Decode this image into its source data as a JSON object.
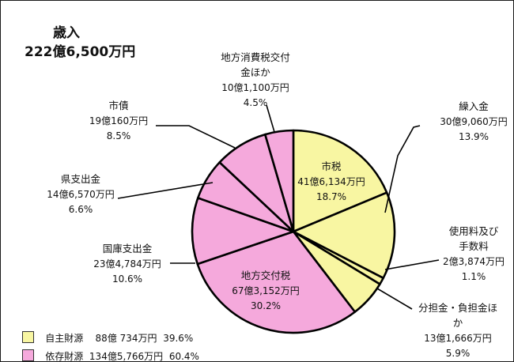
{
  "header": {
    "title": "歳入",
    "total": "222億6,500万円"
  },
  "colors": {
    "own_revenue": "#f8f6a2",
    "dependent_revenue": "#f5a9dc",
    "outline": "#000000"
  },
  "legend": [
    {
      "name": "自主財源",
      "amount": "88億 734万円",
      "percent": "39.6%",
      "color": "#f8f6a2"
    },
    {
      "name": "依存財源",
      "amount": "134億5,766万円",
      "percent": "60.4%",
      "color": "#f5a9dc"
    }
  ],
  "chart_data": {
    "type": "pie",
    "start": "12 o'clock",
    "direction": "clockwise",
    "unit": "%",
    "slices": [
      {
        "name": "市税",
        "amount": "41億6,134万円",
        "percent": "18.7%",
        "value": 18.7,
        "group": "own_revenue"
      },
      {
        "name": "繰入金",
        "amount": "30億9,060万円",
        "percent": "13.9%",
        "value": 13.9,
        "group": "own_revenue"
      },
      {
        "name": "使用料及び手数料",
        "amount": "2億3,874万円",
        "percent": "1.1%",
        "value": 1.1,
        "group": "own_revenue"
      },
      {
        "name": "分担金・負担金ほか",
        "amount": "13億1,666万円",
        "percent": "5.9%",
        "value": 5.9,
        "group": "own_revenue"
      },
      {
        "name": "地方交付税",
        "amount": "67億3,152万円",
        "percent": "30.2%",
        "value": 30.2,
        "group": "dependent_revenue"
      },
      {
        "name": "国庫支出金",
        "amount": "23億4,784万円",
        "percent": "10.6%",
        "value": 10.6,
        "group": "dependent_revenue"
      },
      {
        "name": "県支出金",
        "amount": "14億6,570万円",
        "percent": "6.6%",
        "value": 6.6,
        "group": "dependent_revenue"
      },
      {
        "name": "市債",
        "amount": "19億160万円",
        "percent": "8.5%",
        "value": 8.5,
        "group": "dependent_revenue"
      },
      {
        "name": "地方消費税交付金ほか",
        "amount": "10億1,100万円",
        "percent": "4.5%",
        "value": 4.5,
        "group": "dependent_revenue"
      }
    ]
  }
}
